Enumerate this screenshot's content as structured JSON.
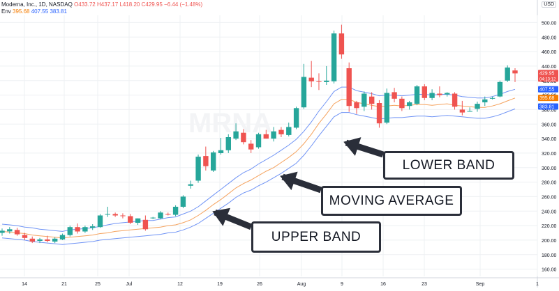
{
  "legend": {
    "symbol": "Moderna, Inc., 1D, NASDAQ",
    "ohlc": "O433.72 H437.17 L418.20 C429.95 −6.44 (−1.48%)",
    "env_label": "Env",
    "env_mid": "395.68",
    "env_upper": "407.55",
    "env_lower": "383.81"
  },
  "currency": "USD",
  "watermark": "MRNA",
  "callouts": {
    "lower": "LOWER BAND",
    "moving_average": "MOVING AVERAGE",
    "upper": "UPPER BAND"
  },
  "colors": {
    "up": "#26a69a",
    "down": "#ef5350",
    "upper_band": "#2962ff",
    "lower_band": "#2962ff",
    "mid": "#f57c00",
    "grid": "#eef0f3"
  },
  "chart_data": {
    "type": "candlestick",
    "y_ticks": [
      160,
      180,
      200,
      220,
      240,
      260,
      280,
      300,
      320,
      340,
      360,
      380,
      400,
      420,
      440,
      460,
      480,
      500
    ],
    "y_tick_labels": [
      "160.00",
      "180.00",
      "200.00",
      "220.00",
      "240.00",
      "260.00",
      "280.00",
      "300.00",
      "320.00",
      "340.00",
      "360.00",
      "380.00",
      "400.00",
      "420.00",
      "440.00",
      "460.00",
      "480.00",
      "500.00"
    ],
    "ylim": [
      150,
      510
    ],
    "x_ticks": [
      "14",
      "21",
      "25",
      "Jul",
      "12",
      "19",
      "26",
      "Aug",
      "9",
      "16",
      "23",
      "Sep",
      "1"
    ],
    "price_labels": [
      {
        "value": 429.95,
        "text": "429.95",
        "sub": "04:13:12",
        "color": "#ef5350"
      },
      {
        "value": 407.55,
        "text": "407.55",
        "color": "#2962ff"
      },
      {
        "value": 395.68,
        "text": "395.68",
        "color": "#f57c00"
      },
      {
        "value": 383.81,
        "text": "383.81",
        "color": "#2962ff"
      }
    ],
    "candles": [
      {
        "o": 210,
        "h": 216,
        "l": 206,
        "c": 213
      },
      {
        "o": 212,
        "h": 218,
        "l": 209,
        "c": 215
      },
      {
        "o": 214,
        "h": 217,
        "l": 206,
        "c": 208
      },
      {
        "o": 207,
        "h": 210,
        "l": 200,
        "c": 203
      },
      {
        "o": 202,
        "h": 205,
        "l": 196,
        "c": 198
      },
      {
        "o": 199,
        "h": 203,
        "l": 196,
        "c": 201
      },
      {
        "o": 201,
        "h": 206,
        "l": 197,
        "c": 199
      },
      {
        "o": 198,
        "h": 204,
        "l": 196,
        "c": 202
      },
      {
        "o": 201,
        "h": 209,
        "l": 200,
        "c": 207
      },
      {
        "o": 207,
        "h": 220,
        "l": 205,
        "c": 218
      },
      {
        "o": 218,
        "h": 223,
        "l": 209,
        "c": 212
      },
      {
        "o": 212,
        "h": 220,
        "l": 210,
        "c": 218
      },
      {
        "o": 217,
        "h": 222,
        "l": 214,
        "c": 219
      },
      {
        "o": 218,
        "h": 236,
        "l": 217,
        "c": 234
      },
      {
        "o": 235,
        "h": 246,
        "l": 232,
        "c": 236
      },
      {
        "o": 236,
        "h": 238,
        "l": 232,
        "c": 234
      },
      {
        "o": 234,
        "h": 237,
        "l": 230,
        "c": 233
      },
      {
        "o": 233,
        "h": 236,
        "l": 222,
        "c": 224
      },
      {
        "o": 224,
        "h": 230,
        "l": 221,
        "c": 230
      },
      {
        "o": 228,
        "h": 234,
        "l": 213,
        "c": 215
      },
      {
        "o": 230,
        "h": 232,
        "l": 229,
        "c": 231
      },
      {
        "o": 230,
        "h": 240,
        "l": 229,
        "c": 238
      },
      {
        "o": 236,
        "h": 238,
        "l": 234,
        "c": 235
      },
      {
        "o": 235,
        "h": 248,
        "l": 233,
        "c": 246
      },
      {
        "o": 246,
        "h": 262,
        "l": 244,
        "c": 260
      },
      {
        "o": 275,
        "h": 282,
        "l": 271,
        "c": 277
      },
      {
        "o": 282,
        "h": 318,
        "l": 279,
        "c": 315
      },
      {
        "o": 316,
        "h": 329,
        "l": 296,
        "c": 302
      },
      {
        "o": 296,
        "h": 323,
        "l": 294,
        "c": 321
      },
      {
        "o": 320,
        "h": 341,
        "l": 318,
        "c": 324
      },
      {
        "o": 324,
        "h": 346,
        "l": 320,
        "c": 342
      },
      {
        "o": 340,
        "h": 361,
        "l": 338,
        "c": 350
      },
      {
        "o": 348,
        "h": 353,
        "l": 332,
        "c": 335
      },
      {
        "o": 333,
        "h": 338,
        "l": 320,
        "c": 325
      },
      {
        "o": 328,
        "h": 348,
        "l": 326,
        "c": 346
      },
      {
        "o": 346,
        "h": 352,
        "l": 340,
        "c": 340
      },
      {
        "o": 340,
        "h": 356,
        "l": 336,
        "c": 350
      },
      {
        "o": 352,
        "h": 356,
        "l": 342,
        "c": 346
      },
      {
        "o": 345,
        "h": 362,
        "l": 343,
        "c": 356
      },
      {
        "o": 355,
        "h": 384,
        "l": 353,
        "c": 382
      },
      {
        "o": 383,
        "h": 443,
        "l": 381,
        "c": 425
      },
      {
        "o": 424,
        "h": 447,
        "l": 411,
        "c": 419
      },
      {
        "o": 419,
        "h": 430,
        "l": 407,
        "c": 418
      },
      {
        "o": 418,
        "h": 440,
        "l": 414,
        "c": 420
      },
      {
        "o": 419,
        "h": 489,
        "l": 416,
        "c": 485
      },
      {
        "o": 485,
        "h": 497,
        "l": 450,
        "c": 456
      },
      {
        "o": 437,
        "h": 445,
        "l": 377,
        "c": 385
      },
      {
        "o": 390,
        "h": 392,
        "l": 374,
        "c": 382
      },
      {
        "o": 384,
        "h": 405,
        "l": 378,
        "c": 402
      },
      {
        "o": 398,
        "h": 404,
        "l": 380,
        "c": 388
      },
      {
        "o": 389,
        "h": 393,
        "l": 355,
        "c": 361
      },
      {
        "o": 362,
        "h": 409,
        "l": 360,
        "c": 403
      },
      {
        "o": 404,
        "h": 410,
        "l": 390,
        "c": 395
      },
      {
        "o": 395,
        "h": 398,
        "l": 378,
        "c": 382
      },
      {
        "o": 385,
        "h": 392,
        "l": 380,
        "c": 390
      },
      {
        "o": 388,
        "h": 414,
        "l": 386,
        "c": 412
      },
      {
        "o": 412,
        "h": 415,
        "l": 393,
        "c": 396
      },
      {
        "o": 396,
        "h": 408,
        "l": 393,
        "c": 403
      },
      {
        "o": 402,
        "h": 412,
        "l": 397,
        "c": 400
      },
      {
        "o": 401,
        "h": 404,
        "l": 398,
        "c": 403
      },
      {
        "o": 402,
        "h": 404,
        "l": 380,
        "c": 384
      },
      {
        "o": 380,
        "h": 392,
        "l": 372,
        "c": 376
      },
      {
        "o": 378,
        "h": 383,
        "l": 377,
        "c": 378
      },
      {
        "o": 381,
        "h": 391,
        "l": 377,
        "c": 388
      },
      {
        "o": 390,
        "h": 398,
        "l": 385,
        "c": 394
      },
      {
        "o": 395,
        "h": 398,
        "l": 394,
        "c": 396
      },
      {
        "o": 398,
        "h": 420,
        "l": 397,
        "c": 418
      },
      {
        "o": 420,
        "h": 441,
        "l": 418,
        "c": 438
      },
      {
        "o": 434,
        "h": 437,
        "l": 418,
        "c": 430
      }
    ],
    "upper_band": [
      222,
      221,
      220,
      218,
      217,
      215,
      214,
      213,
      212,
      214,
      215,
      216,
      217,
      219,
      221,
      223,
      224,
      225,
      226,
      227,
      227,
      229,
      231,
      232,
      236,
      240,
      246,
      254,
      262,
      270,
      278,
      286,
      293,
      298,
      305,
      311,
      317,
      324,
      331,
      339,
      350,
      363,
      378,
      391,
      405,
      411,
      411,
      406,
      404,
      402,
      399,
      400,
      400,
      399,
      400,
      401,
      401,
      400,
      401,
      401,
      400,
      398,
      397,
      396,
      396,
      398,
      401,
      405,
      408
    ],
    "moving_average": [
      212,
      211,
      210,
      209,
      207,
      206,
      205,
      204,
      203,
      204,
      205,
      206,
      207,
      209,
      210,
      212,
      213,
      214,
      215,
      216,
      217,
      218,
      220,
      221,
      224,
      228,
      234,
      241,
      249,
      256,
      264,
      272,
      278,
      283,
      289,
      295,
      300,
      307,
      314,
      322,
      333,
      346,
      361,
      374,
      388,
      394,
      394,
      390,
      388,
      386,
      384,
      385,
      386,
      385,
      386,
      387,
      387,
      386,
      387,
      388,
      386,
      385,
      384,
      383,
      383,
      385,
      388,
      392,
      396
    ],
    "lower_band": [
      203,
      202,
      201,
      200,
      198,
      197,
      196,
      195,
      194,
      195,
      196,
      197,
      198,
      200,
      201,
      202,
      203,
      204,
      205,
      206,
      207,
      208,
      210,
      211,
      214,
      218,
      223,
      230,
      237,
      244,
      251,
      259,
      265,
      269,
      275,
      280,
      286,
      292,
      299,
      306,
      317,
      330,
      344,
      357,
      370,
      376,
      376,
      373,
      371,
      369,
      367,
      368,
      369,
      369,
      370,
      371,
      371,
      370,
      371,
      372,
      371,
      370,
      369,
      368,
      368,
      370,
      373,
      377,
      381
    ]
  }
}
